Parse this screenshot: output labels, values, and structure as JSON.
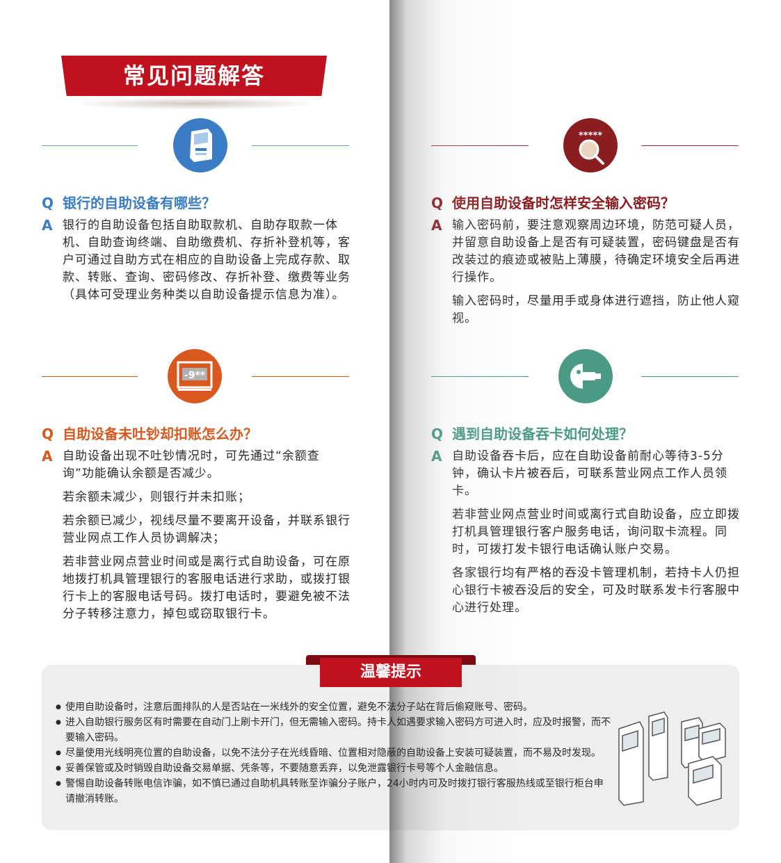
{
  "header": {
    "title": "常见问题解答"
  },
  "colors": {
    "red": "#c0111f",
    "blue": "#3b7dc4",
    "orange": "#d9581f",
    "darkred": "#8b1c1f",
    "teal": "#4a9a85"
  },
  "faq": [
    {
      "q_letter": "Q",
      "a_letter": "A",
      "question": "银行的自助设备有哪些？",
      "icon": "atm-machine-icon",
      "answers": [
        "银行的自助设备包括自助取款机、自助存取款一体机、自助查询终端、自助缴费机、存折补登机等，客户可通过自助方式在相应的自助设备上完成存款、取款、转账、查询、密码修改、存折补登、缴费等业务（具体可受理业务种类以自助设备提示信息为准）。"
      ]
    },
    {
      "q_letter": "Q",
      "a_letter": "A",
      "question": "使用自助设备时怎样安全输入密码？",
      "icon": "password-magnifier-icon",
      "icon_text": "*****",
      "answers": [
        "输入密码前，要注意观察周边环境，防范可疑人员，并留意自助设备上是否有可疑装置，密码键盘是否有改装过的痕迹或被贴上薄膜，待确定环境安全后再进行操作。",
        "输入密码时，尽量用手或身体进行遮挡，防止他人窥视。"
      ]
    },
    {
      "q_letter": "Q",
      "a_letter": "A",
      "question": "自助设备未吐钞却扣账怎么办？",
      "icon": "screen-code-icon",
      "icon_text": "-9**",
      "answers": [
        "自助设备出现不吐钞情况时，可先通过“余额查询”功能确认余额是否减少。",
        "若余额未减少，则银行并未扣账；",
        "若余额已减少，视线尽量不要离开设备，并联系银行营业网点工作人员协调解决；",
        "若非营业网点营业时间或是离行式自助设备，可在原地拨打机具管理银行的客服电话进行求助，或拨打银行卡上的客服电话号码。拨打电话时，要避免被不法分子转移注意力，掉包或窃取银行卡。"
      ]
    },
    {
      "q_letter": "Q",
      "a_letter": "A",
      "question": "遇到自助设备吞卡如何处理？",
      "icon": "card-swallow-icon",
      "answers": [
        "自助设备吞卡后，应在自助设备前耐心等待3-5分钟，确认卡片被吞后，可联系营业网点工作人员领卡。",
        "若非营业网点营业时间或离行式自助设备，应立即拨打机具管理银行客户服务电话，询问取卡流程。同时，可拨打发卡银行电话确认账户交易。",
        "各家银行均有严格的吞没卡管理机制，若持卡人仍担心银行卡被吞没后的安全，可及时联系发卡行客服中心进行处理。"
      ]
    }
  ],
  "tips": {
    "title": "温馨提示",
    "items": [
      "使用自助设备时，注意后面排队的人是否站在一米线外的安全位置，避免不法分子站在背后偷窥账号、密码。",
      "进入自助银行服务区有时需要在自动门上刷卡开门，但无需输入密码。持卡人如遇要求输入密码方可进入时，应及时报警，而不要输入密码。",
      "尽量使用光线明亮位置的自助设备，以免不法分子在光线昏暗、位置相对隐蔽的自助设备上安装可疑装置，而不易及时发现。",
      "妥善保管或及时销毁自助设备交易单据、凭条等，不要随意丢弃，以免泄露银行卡号等个人金融信息。",
      "警惕自助设备转账电信诈骗，如不慎已通过自助机具转账至诈骗分子账户，24小时内可及时拨打银行客服热线或至银行柜台申请撤消转账。"
    ]
  }
}
